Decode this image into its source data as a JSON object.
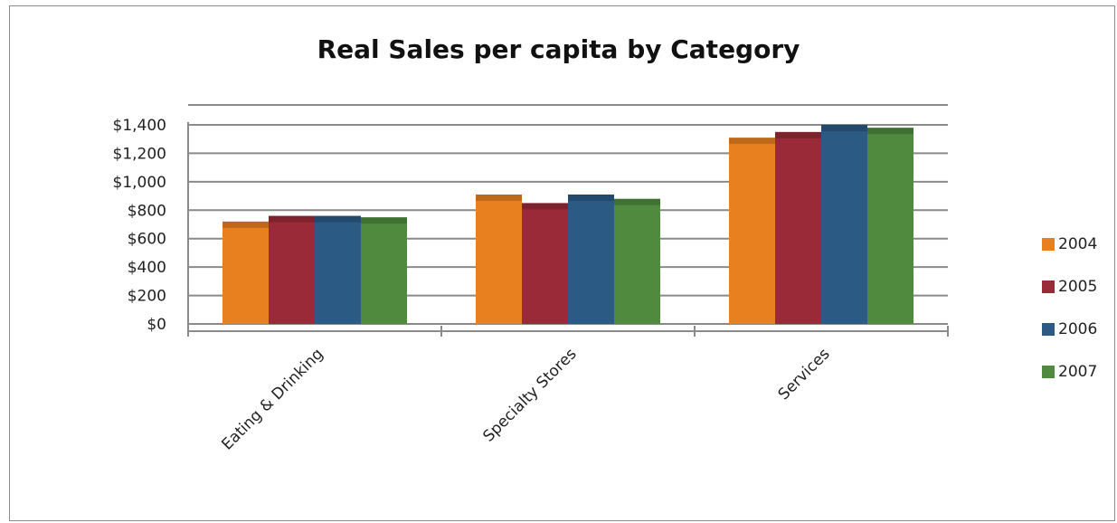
{
  "chart_data": {
    "type": "bar",
    "title": "Real Sales per capita by Category",
    "xlabel": "",
    "ylabel": "",
    "categories": [
      "Eating & Drinking",
      "Specialty Stores",
      "Services"
    ],
    "series": [
      {
        "name": "2004",
        "color": "#e8801f",
        "values": [
          720,
          910,
          1310
        ]
      },
      {
        "name": "2005",
        "color": "#9a2a38",
        "values": [
          760,
          850,
          1350
        ]
      },
      {
        "name": "2006",
        "color": "#2b5a85",
        "values": [
          760,
          910,
          1400
        ]
      },
      {
        "name": "2007",
        "color": "#4f8a3f",
        "values": [
          750,
          880,
          1380
        ]
      }
    ],
    "ylim": [
      0,
      1400
    ],
    "y_ticks": [
      "$0",
      "$200",
      "$400",
      "$600",
      "$800",
      "$1,000",
      "$1,200",
      "$1,400"
    ],
    "grid": true,
    "legend_position": "right"
  }
}
